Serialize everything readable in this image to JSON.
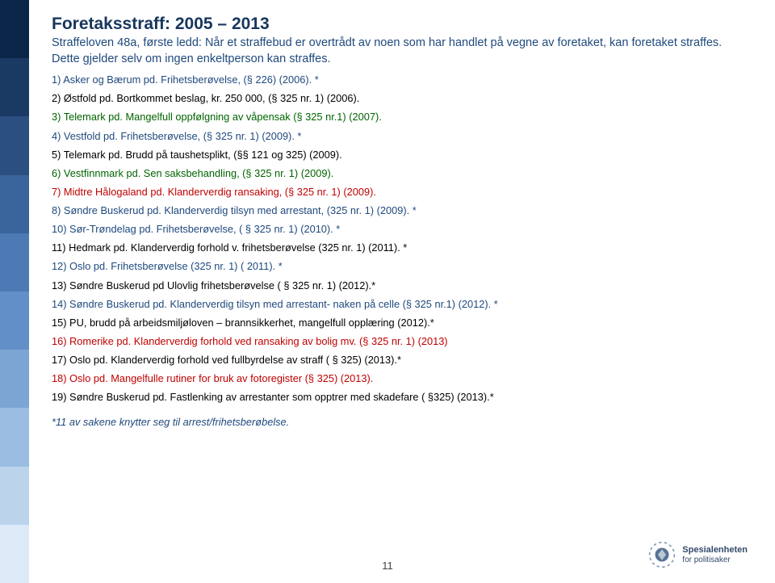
{
  "sidebar_colors": [
    "#0b2548",
    "#1b3a63",
    "#2a4f80",
    "#3a649c",
    "#4c7ab5",
    "#628fc7",
    "#7da5d4",
    "#9bbde1",
    "#bbd4ec",
    "#dce9f6"
  ],
  "title": "Foretaksstraff: 2005 – 2013",
  "subtitle_line1": "Straffeloven 48a, første ledd: Når et straffebud er overtrådt av noen som har handlet på vegne av foretaket, kan foretaket straffes. Dette gjelder selv om ingen enkeltperson kan straffes.",
  "items": [
    {
      "text": "1) Asker og Bærum pd. Frihetsberøvelse, (§ 226) (2006). *",
      "cls": "item-blue"
    },
    {
      "text": "2) Østfold pd. Bortkommet beslag, kr. 250 000, (§ 325 nr. 1) (2006).",
      "cls": "item-black"
    },
    {
      "text": "3) Telemark pd. Mangelfull oppfølgning av våpensak (§ 325 nr.1) (2007).",
      "cls": "item-green"
    },
    {
      "text": "4) Vestfold pd. Frihetsberøvelse, (§ 325 nr. 1) (2009). *",
      "cls": "item-blue"
    },
    {
      "text": "5) Telemark pd. Brudd på taushetsplikt, (§§ 121 og 325) (2009).",
      "cls": "item-black"
    },
    {
      "text": "6) Vestfinnmark pd. Sen saksbehandling, (§ 325 nr. 1) (2009).",
      "cls": "item-green"
    },
    {
      "text": "7) Midtre Hålogaland pd. Klanderverdig ransaking, (§ 325 nr. 1) (2009).",
      "cls": "item-red"
    },
    {
      "text": "8) Søndre Buskerud pd. Klanderverdig tilsyn med arrestant, (325 nr. 1) (2009). *",
      "cls": "item-blue"
    },
    {
      "text": "10) Sør-Trøndelag pd. Frihetsberøvelse, ( § 325 nr. 1) (2010). *",
      "cls": "item-blue"
    },
    {
      "text": "11) Hedmark pd. Klanderverdig forhold v. frihetsberøvelse (325 nr. 1) (2011). *",
      "cls": "item-black"
    },
    {
      "text": "12) Oslo pd. Frihetsberøvelse (325 nr. 1) ( 2011). *",
      "cls": "item-blue"
    },
    {
      "text": "13) Søndre Buskerud pd Ulovlig frihetsberøvelse ( § 325 nr. 1) (2012).*",
      "cls": "item-black"
    },
    {
      "text": "14) Søndre Buskerud pd. Klanderverdig tilsyn med arrestant- naken på celle (§ 325 nr.1) (2012). *",
      "cls": "item-blue"
    },
    {
      "text": "15) PU, brudd på arbeidsmiljøloven – brannsikkerhet, mangelfull opplæring (2012).*",
      "cls": "item-black"
    },
    {
      "text": "16) Romerike pd. Klanderverdig forhold ved ransaking av bolig mv. (§ 325 nr. 1) (2013)",
      "cls": "item-red"
    },
    {
      "text": "17) Oslo pd. Klanderverdig forhold ved fullbyrdelse av straff ( § 325) (2013).*",
      "cls": "item-black"
    },
    {
      "text": "18) Oslo pd. Mangelfulle rutiner for bruk av fotoregister (§ 325) (2013).",
      "cls": "item-red"
    },
    {
      "text": "19) Søndre Buskerud pd. Fastlenking av arrestanter som opptrer med skadefare ( §325) (2013).*",
      "cls": "item-black"
    }
  ],
  "footnote": "*11 av sakene knytter seg til arrest/frihetsberøbelse.",
  "page_number": "11",
  "logo": {
    "line1": "Spesialenheten",
    "line2": "for politisaker"
  }
}
